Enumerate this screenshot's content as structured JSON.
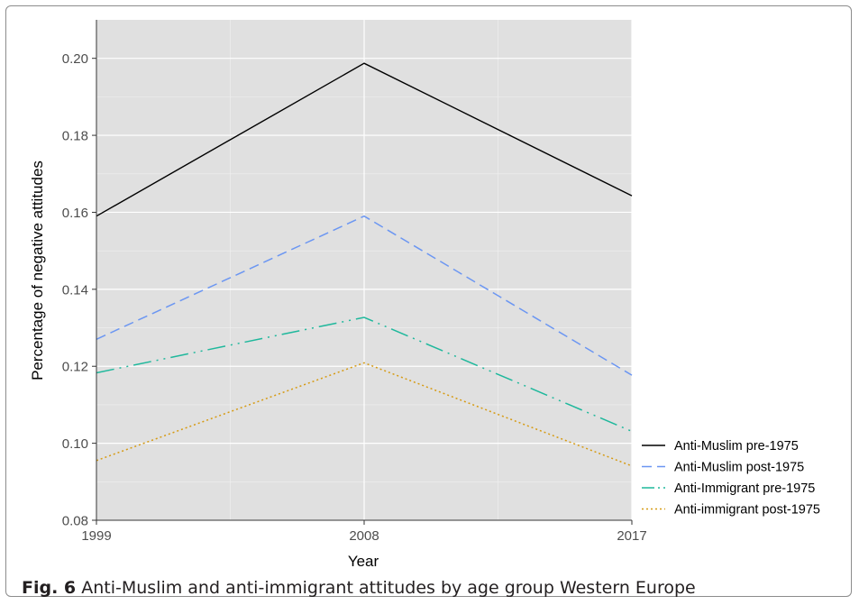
{
  "chart_data": {
    "type": "line",
    "x": [
      1999,
      2008,
      2017
    ],
    "xticks": [
      "1999",
      "2008",
      "2017"
    ],
    "yticks": [
      "0.08",
      "0.10",
      "0.12",
      "0.14",
      "0.16",
      "0.18",
      "0.20"
    ],
    "xlabel": "Year",
    "ylabel": "Percentage of negative attitudes",
    "xlim": [
      1999,
      2017
    ],
    "ylim": [
      0.08,
      0.21
    ],
    "grid": true,
    "legend_position": "right",
    "series": [
      {
        "name": "Anti-Muslim pre-1975",
        "values": [
          0.159,
          0.1987,
          0.1643
        ],
        "color": "#000000",
        "dash": "solid"
      },
      {
        "name": "Anti-Muslim post-1975",
        "values": [
          0.127,
          0.159,
          0.1177
        ],
        "color": "#6b96f2",
        "dash": "dashed"
      },
      {
        "name": "Anti-Immigrant pre-1975",
        "values": [
          0.1183,
          0.1327,
          0.1031
        ],
        "color": "#1fb89c",
        "dash": "longdash-dot"
      },
      {
        "name": "Anti-immigrant post-1975",
        "values": [
          0.0955,
          0.1209,
          0.0941
        ],
        "color": "#d69a12",
        "dash": "dotted"
      }
    ]
  },
  "caption": {
    "label": "Fig. 6",
    "text": "Anti-Muslim and anti-immigrant attitudes by age group Western Europe"
  }
}
